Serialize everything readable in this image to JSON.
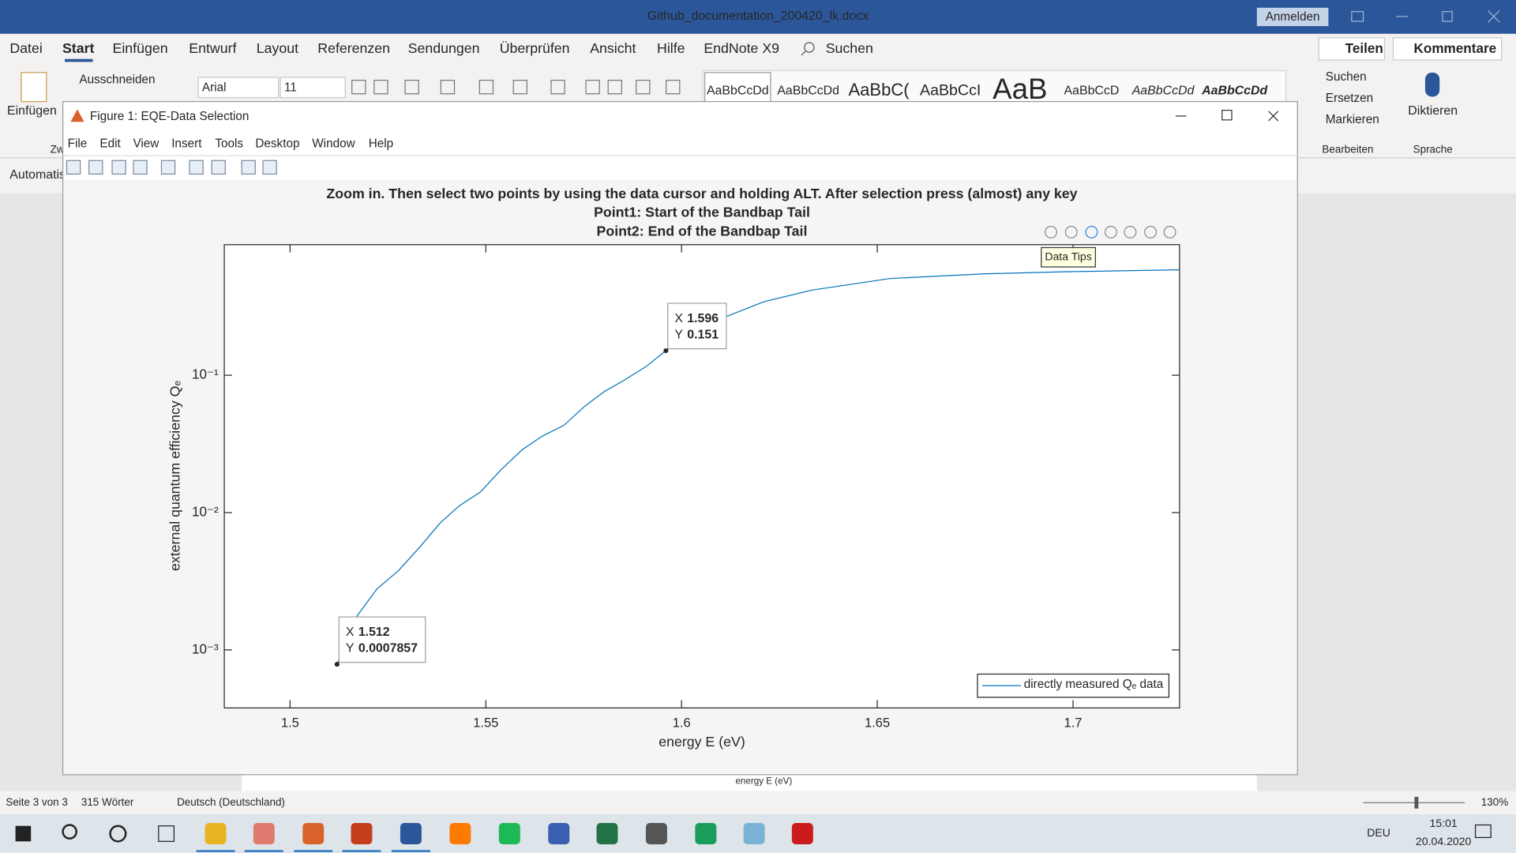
{
  "word": {
    "title": "Github_documentation_200420_lk.docx",
    "sign_in": "Anmelden",
    "tabs": [
      "Datei",
      "Start",
      "Einfügen",
      "Entwurf",
      "Layout",
      "Referenzen",
      "Sendungen",
      "Überprüfen",
      "Ansicht",
      "Hilfe",
      "EndNote X9"
    ],
    "search": "Suchen",
    "share": "Teilen",
    "comments": "Kommentare",
    "clipboard": {
      "paste": "Einfügen",
      "cut": "Ausschneiden",
      "group": "Zw"
    },
    "font": "Arial",
    "font_size": "11",
    "styles": [
      "AaBbCcDd",
      "AaBbCcDd",
      "AaBbC(",
      "AaBbCcI",
      "AaB",
      "AaBbCcD",
      "AaBbCcDd",
      "AaBbCcDd"
    ],
    "editing": {
      "find": "Suchen",
      "replace": "Ersetzen",
      "select": "Markieren",
      "group": "Bearbeiten"
    },
    "voice": {
      "dictate": "Diktieren",
      "group": "Sprache"
    },
    "left_label": "Automatis",
    "background_caption": "energy  E (eV)",
    "status": {
      "page": "Seite 3 von 3",
      "words": "315 Wörter",
      "language": "Deutsch (Deutschland)",
      "zoom": "130%"
    }
  },
  "figure": {
    "title": "Figure 1: EQE-Data Selection",
    "menu": [
      "File",
      "Edit",
      "View",
      "Insert",
      "Tools",
      "Desktop",
      "Window",
      "Help"
    ],
    "tooltip": "Data Tips"
  },
  "chart_data": {
    "type": "line",
    "title": [
      "Zoom in. Then select two points by using the data cursor and holding ALT. After selection press (almost) any key",
      "Point1: Start of the Bandbap Tail",
      "Point2: End of the Bandbap Tail"
    ],
    "xlabel": "energy  E (eV)",
    "ylabel": "external quantum efficiency  Qₑ",
    "x": [
      1.512,
      1.5173,
      1.5222,
      1.5277,
      1.5333,
      1.5383,
      1.5432,
      1.5486,
      1.5538,
      1.5593,
      1.5644,
      1.5699,
      1.5753,
      1.5802,
      1.5854,
      1.5909,
      1.596,
      1.6012,
      1.6116,
      1.621,
      1.6333,
      1.6432,
      1.6531,
      1.6679,
      1.6778,
      1.6975,
      1.7272
    ],
    "series": [
      {
        "name": "directly measured  Qₑ data",
        "color": "#0072bd",
        "values": [
          0.0007857,
          0.0018,
          0.00278,
          0.00378,
          0.00568,
          0.00838,
          0.0112,
          0.0141,
          0.0204,
          0.0287,
          0.036,
          0.0431,
          0.0596,
          0.0759,
          0.0922,
          0.1156,
          0.151,
          0.201,
          0.269,
          0.343,
          0.417,
          0.459,
          0.506,
          0.531,
          0.548,
          0.567,
          0.586
        ]
      }
    ],
    "xlim": [
      1.4832,
      1.7272
    ],
    "ylim": [
      0.000378,
      0.893
    ],
    "xticks": [
      1.5,
      1.55,
      1.6,
      1.65,
      1.7
    ],
    "yticks": [
      {
        "value": 0.001,
        "label": "10⁻³"
      },
      {
        "value": 0.01,
        "label": "10⁻²"
      },
      {
        "value": 0.1,
        "label": "10⁻¹"
      }
    ],
    "yscale": "log",
    "legend": "lower right",
    "datatip_x_label": "X",
    "datatip_y_label": "Y",
    "datatips": [
      {
        "x": 1.512,
        "y": 0.0007857
      },
      {
        "x": 1.596,
        "y": 0.151
      }
    ]
  },
  "taskbar": {
    "language": "DEU",
    "time": "15:01",
    "date": "20.04.2020"
  }
}
